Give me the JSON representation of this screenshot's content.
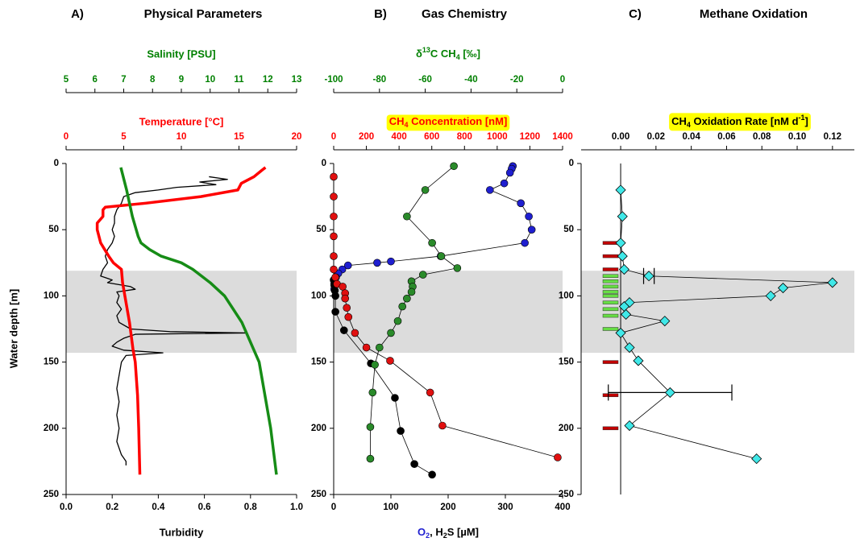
{
  "chart_data": [
    {
      "type": "profile",
      "panel": "A)",
      "title": "Physical Parameters",
      "ylabel": "Water depth [m]",
      "ylim": [
        0,
        250
      ],
      "yticks": [
        0,
        50,
        100,
        150,
        200,
        250
      ],
      "invert_y": true,
      "shaded": [
        81,
        143
      ],
      "xbottom": {
        "label": "Turbidity",
        "xlim": [
          0,
          1
        ],
        "color": "#000000",
        "xticks": [
          {
            "value": 0,
            "label": "0.0"
          },
          0.2,
          0.4,
          0.6,
          0.8,
          {
            "value": 1,
            "label": "1.0"
          }
        ]
      },
      "xtop": {
        "label": "Temperature [°C]",
        "xlim": [
          0,
          20
        ],
        "color": "#ff0000",
        "xticks": [
          0,
          5,
          10,
          15,
          20
        ]
      },
      "xtop2": {
        "label": "Salinity [PSU]",
        "xlim": [
          5,
          13
        ],
        "color": "#008000",
        "xticks": [
          5,
          6,
          7,
          8,
          9,
          10,
          11,
          12,
          13
        ]
      },
      "series": [
        {
          "axis": "xbottom",
          "color": "#000000",
          "marker": "line",
          "width": 1.3,
          "depths": [
            10,
            12,
            14,
            16,
            18,
            20,
            22,
            25,
            30,
            35,
            40,
            45,
            50,
            55,
            60,
            65,
            70,
            75,
            80,
            85,
            88,
            90,
            93,
            95,
            97,
            100,
            105,
            110,
            115,
            120,
            125,
            127,
            128,
            129,
            132,
            135,
            138,
            141,
            143,
            145,
            150,
            160,
            170,
            180,
            190,
            200,
            210,
            220,
            225,
            228
          ],
          "values": [
            0.62,
            0.7,
            0.58,
            0.65,
            0.48,
            0.4,
            0.3,
            0.25,
            0.24,
            0.22,
            0.21,
            0.21,
            0.2,
            0.21,
            0.2,
            0.18,
            0.17,
            0.18,
            0.16,
            0.15,
            0.2,
            0.18,
            0.28,
            0.3,
            0.22,
            0.23,
            0.22,
            0.24,
            0.22,
            0.23,
            0.28,
            0.45,
            0.78,
            0.3,
            0.25,
            0.22,
            0.2,
            0.25,
            0.42,
            0.26,
            0.24,
            0.23,
            0.22,
            0.23,
            0.22,
            0.23,
            0.22,
            0.24,
            0.26,
            0.26
          ]
        },
        {
          "axis": "xtop",
          "color": "#ff0000",
          "marker": "line",
          "width": 3.5,
          "depths": [
            3,
            5,
            10,
            15,
            20,
            25,
            30,
            33,
            35,
            40,
            45,
            50,
            60,
            70,
            75,
            80,
            90,
            100,
            120,
            140,
            150,
            175,
            200,
            235
          ],
          "values": [
            17.3,
            17.0,
            16.3,
            15.2,
            14.9,
            11.7,
            6.9,
            3.4,
            3.2,
            3.2,
            2.7,
            2.7,
            3.0,
            3.7,
            4.1,
            4.8,
            4.9,
            5.1,
            5.5,
            5.8,
            6.0,
            6.2,
            6.3,
            6.4
          ]
        },
        {
          "axis": "xtop2",
          "color": "#168c16",
          "marker": "line",
          "width": 3.5,
          "depths": [
            3,
            20,
            40,
            55,
            60,
            65,
            70,
            75,
            80,
            90,
            100,
            120,
            140,
            150,
            175,
            200,
            235
          ],
          "values": [
            6.9,
            7.1,
            7.3,
            7.5,
            7.6,
            7.9,
            8.3,
            9.0,
            9.4,
            10.0,
            10.5,
            11.1,
            11.5,
            11.7,
            11.9,
            12.1,
            12.3
          ]
        }
      ]
    },
    {
      "type": "profile",
      "panel": "B)",
      "title": "Gas Chemistry",
      "ylim": [
        0,
        250
      ],
      "yticks": [
        0,
        50,
        100,
        150,
        200,
        250
      ],
      "invert_y": true,
      "shaded": [
        81,
        143
      ],
      "xbottom": {
        "label": [
          "O",
          "2",
          ", H",
          "2",
          "S [µM]"
        ],
        "xlim": [
          0,
          400
        ],
        "color": "#000000",
        "xticks": [
          0,
          100,
          200,
          300,
          400
        ]
      },
      "xtop": {
        "label": [
          "CH",
          "4",
          " Concentration [nM]"
        ],
        "xlim": [
          0,
          1400
        ],
        "color": "#ff0000",
        "xticks": [
          0,
          200,
          400,
          600,
          800,
          1000,
          1200,
          1400
        ]
      },
      "xtop2": {
        "label": [
          "δ",
          "13",
          "C CH",
          "4",
          " [‰]"
        ],
        "xlim": [
          -100,
          0
        ],
        "color": "#008000",
        "xticks": [
          -100,
          -80,
          -60,
          -40,
          -20,
          0
        ]
      },
      "series": [
        {
          "axis": "xbottom",
          "color": "#1f1fd0",
          "marker": "circle",
          "depths": [
            2,
            4,
            7,
            15,
            20,
            30,
            40,
            50,
            60,
            70,
            74,
            75,
            77,
            80,
            83,
            86,
            91,
            95
          ],
          "values": [
            313,
            311,
            308,
            298,
            273,
            327,
            341,
            346,
            334,
            187,
            100,
            76,
            25,
            15,
            8,
            4,
            1,
            1
          ]
        },
        {
          "axis": "xbottom",
          "color": "#000000",
          "marker": "circle",
          "depths": [
            88,
            92,
            96,
            100,
            112,
            126,
            151,
            177,
            202,
            227,
            235
          ],
          "values": [
            0,
            1,
            2,
            3,
            3,
            18,
            65,
            107,
            117,
            141,
            172
          ]
        },
        {
          "axis": "xtop",
          "color": "#e01010",
          "marker": "circle",
          "depths": [
            10,
            25,
            40,
            55,
            70,
            80,
            86,
            91,
            93,
            98,
            102,
            109,
            116,
            128,
            139,
            149,
            173,
            198,
            222
          ],
          "values": [
            0,
            0,
            0,
            0,
            0,
            0,
            10,
            20,
            55,
            70,
            70,
            80,
            90,
            130,
            200,
            345,
            590,
            665,
            1370
          ]
        },
        {
          "axis": "xtop2",
          "color": "#2a8a2a",
          "marker": "circle",
          "depths": [
            2,
            20,
            40,
            60,
            70,
            79,
            84,
            89,
            93,
            97,
            102,
            108,
            119,
            128,
            139,
            152,
            173,
            199,
            223
          ],
          "values": [
            -47.5,
            -60,
            -68,
            -57,
            -53,
            -46,
            -61,
            -66,
            -65.5,
            -66,
            -68,
            -70,
            -72,
            -75,
            -80,
            -82,
            -83,
            -84,
            -84
          ]
        }
      ]
    },
    {
      "type": "profile",
      "panel": "C)",
      "title": "Methane Oxidation",
      "ylim": [
        0,
        250
      ],
      "yticks": [
        0,
        50,
        100,
        150,
        200,
        250
      ],
      "invert_y": true,
      "shaded": [
        81,
        143
      ],
      "xtop": {
        "label": [
          "CH",
          "4",
          " Oxidation Rate [nM d",
          "-1",
          "]"
        ],
        "xlim": [
          -0.0224,
          0.1324
        ],
        "color": "#000000",
        "xticks": [
          {
            "value": 0,
            "label": "0.00"
          },
          {
            "value": 0.02,
            "label": "0.02"
          },
          {
            "value": 0.04,
            "label": "0.04"
          },
          {
            "value": 0.06,
            "label": "0.06"
          },
          {
            "value": 0.08,
            "label": "0.08"
          },
          {
            "value": 0.1,
            "label": "0.10"
          },
          {
            "value": 0.12,
            "label": "0.12"
          }
        ]
      },
      "zero_line": 0,
      "sample_bars": [
        {
          "color": "#c00000",
          "depths": [
            60,
            70,
            80,
            150,
            175,
            200
          ]
        },
        {
          "color": "#66dd44",
          "depths": [
            85,
            89,
            93,
            97,
            100,
            105,
            110,
            115,
            125
          ]
        }
      ],
      "series": [
        {
          "axis": "xtop",
          "color": "#40e8e8",
          "marker": "diamond",
          "depths": [
            20,
            40,
            60,
            70,
            80,
            85,
            90,
            94,
            100,
            105,
            108,
            114,
            119,
            128,
            139,
            149,
            173,
            198,
            223
          ],
          "values": [
            0,
            0.001,
            0,
            0.001,
            0.002,
            0.016,
            0.12,
            0.092,
            0.085,
            0.005,
            0.002,
            0.003,
            0.025,
            0,
            0.005,
            0.01,
            0.028,
            0.005,
            0.077
          ],
          "errors": [
            null,
            null,
            null,
            null,
            null,
            0.003,
            null,
            null,
            null,
            null,
            null,
            null,
            null,
            null,
            null,
            null,
            0.035,
            null,
            null
          ]
        }
      ]
    }
  ]
}
